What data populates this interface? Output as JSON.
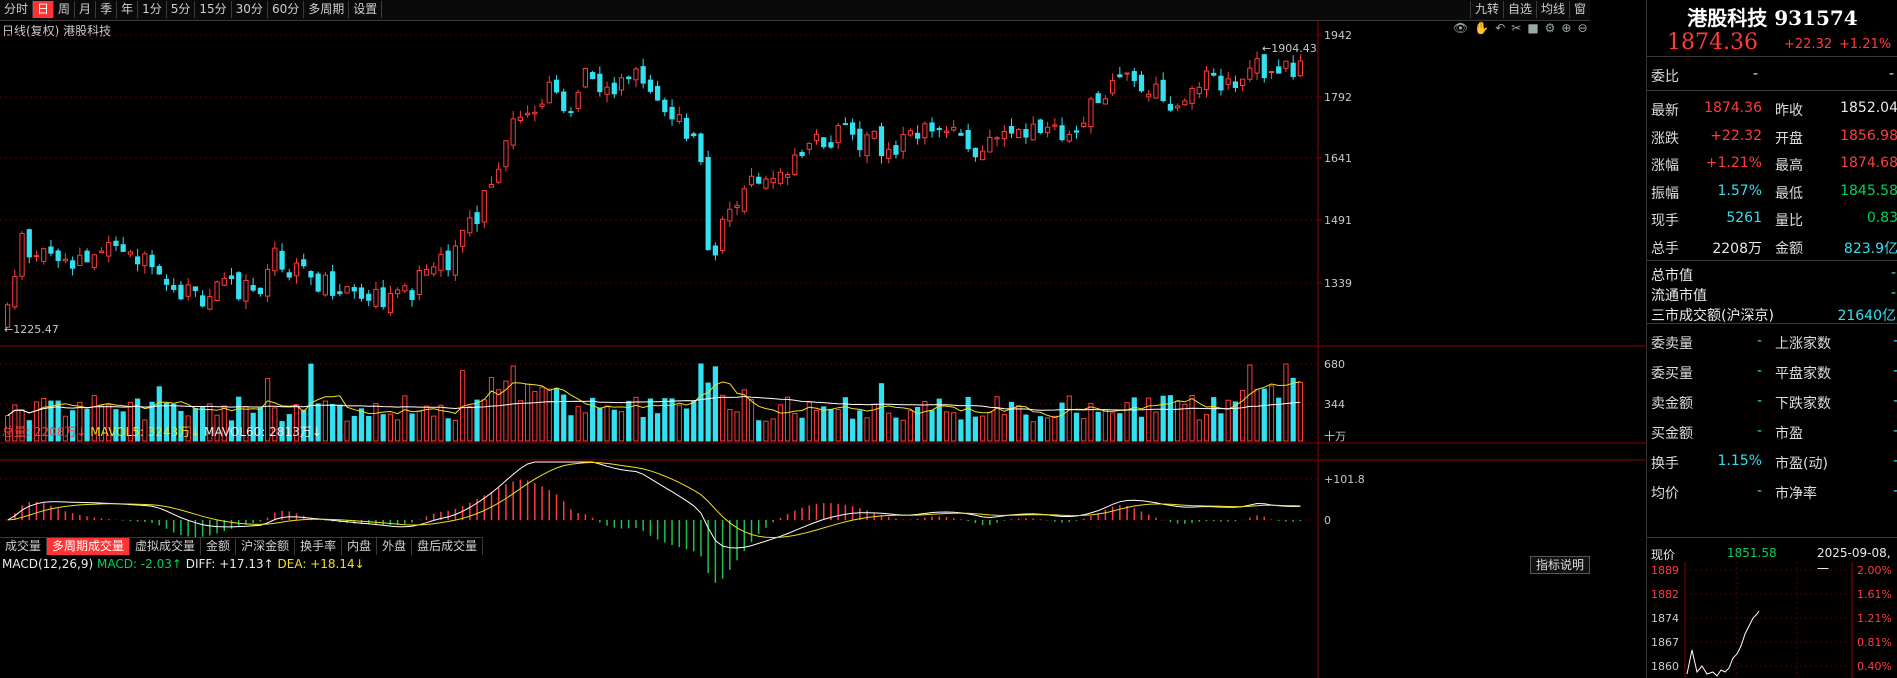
{
  "toolbar": {
    "period_tabs": [
      "分时",
      "日",
      "周",
      "月",
      "季",
      "年",
      "1分",
      "5分",
      "15分",
      "30分",
      "60分",
      "多周期",
      "设置"
    ],
    "active_index": 1,
    "right_tools": [
      "九转",
      "自选",
      "均线",
      "窗"
    ]
  },
  "chart": {
    "label": "日线(复权)  港股科技",
    "price_axis": [
      "1942",
      "1792",
      "1641",
      "1491",
      "1339"
    ],
    "high_marker": "1904.43",
    "low_marker": "1225.47",
    "icons": [
      "eye-icon",
      "hand-icon",
      "undo-icon",
      "scissors-icon",
      "lock-icon",
      "gear-icon",
      "plus-circle-icon",
      "minus-circle-icon"
    ]
  },
  "volume": {
    "legend": {
      "total": "总量: 2208万↓",
      "ma5": "MAVOL5: 3243万↓",
      "ma60": "MAVOL60: 2813万↓"
    },
    "axis": [
      "680",
      "344",
      "十万"
    ]
  },
  "bottom_tabs": {
    "items": [
      "成交量",
      "多周期成交量",
      "虚拟成交量",
      "金额",
      "沪深金额",
      "换手率",
      "内盘",
      "外盘",
      "盘后成交量"
    ],
    "active_index": 1
  },
  "macd": {
    "legend": {
      "name": "MACD(12,26,9)",
      "macd": "MACD: -2.03↑",
      "diff": "DIFF: +17.13↑",
      "dea": "DEA: +18.14↓"
    },
    "axis": [
      "101.8",
      "0"
    ],
    "button": "指标说明"
  },
  "panel": {
    "title": "港股科技 931574",
    "price": "1874.36",
    "change": "+22.32",
    "change_pct": "+1.21%",
    "wei_bi_label": "委比",
    "wei_bi_left": "-",
    "wei_bi_right": "-",
    "rows": [
      {
        "l1": "最新",
        "v1": "1874.36",
        "c1": "red",
        "l2": "昨收",
        "v2": "1852.04",
        "c2": "white"
      },
      {
        "l1": "涨跌",
        "v1": "+22.32",
        "c1": "red",
        "l2": "开盘",
        "v2": "1856.98",
        "c2": "red"
      },
      {
        "l1": "涨幅",
        "v1": "+1.21%",
        "c1": "red",
        "l2": "最高",
        "v2": "1874.68",
        "c2": "red"
      },
      {
        "l1": "振幅",
        "v1": "1.57%",
        "c1": "cyan",
        "l2": "最低",
        "v2": "1845.58",
        "c2": "green"
      },
      {
        "l1": "现手",
        "v1": "5261",
        "c1": "cyan",
        "l2": "量比",
        "v2": "0.83",
        "c2": "green"
      },
      {
        "l1": "总手",
        "v1": "2208万",
        "c1": "white",
        "l2": "金额",
        "v2": "823.9亿",
        "c2": "cyan"
      }
    ],
    "market": [
      {
        "l": "总市值",
        "v": "-"
      },
      {
        "l": "流通市值",
        "v": "-"
      },
      {
        "l": "三市成交额(沪深京)",
        "v": "21640亿"
      }
    ],
    "rows2": [
      {
        "l1": "委卖量",
        "v1": "-",
        "l2": "上涨家数",
        "v2": "-"
      },
      {
        "l1": "委买量",
        "v1": "-",
        "l2": "平盘家数",
        "v2": "-"
      },
      {
        "l1": "卖金额",
        "v1": "-",
        "l2": "下跌家数",
        "v2": "-"
      },
      {
        "l1": "买金额",
        "v1": "-",
        "l2": "市盈",
        "v2": "-"
      },
      {
        "l1": "换手",
        "v1": "1.15%",
        "l2": "市盈(动)",
        "v2": "-"
      },
      {
        "l1": "均价",
        "v1": "-",
        "l2": "市净率",
        "v2": "-"
      }
    ],
    "mini": {
      "label": "现价",
      "value": "1851.58",
      "date": "2025-09-08,一",
      "left_axis": [
        "1889",
        "1882",
        "1874",
        "1867",
        "1860"
      ],
      "right_axis": [
        "2.00%",
        "1.61%",
        "1.21%",
        "0.81%",
        "0.40%"
      ]
    }
  },
  "colors": {
    "up": "#ff3c3c",
    "down": "#33e0f0",
    "ma5": "#f0e020",
    "ma60": "#ffffff",
    "dea": "#f0e020"
  }
}
